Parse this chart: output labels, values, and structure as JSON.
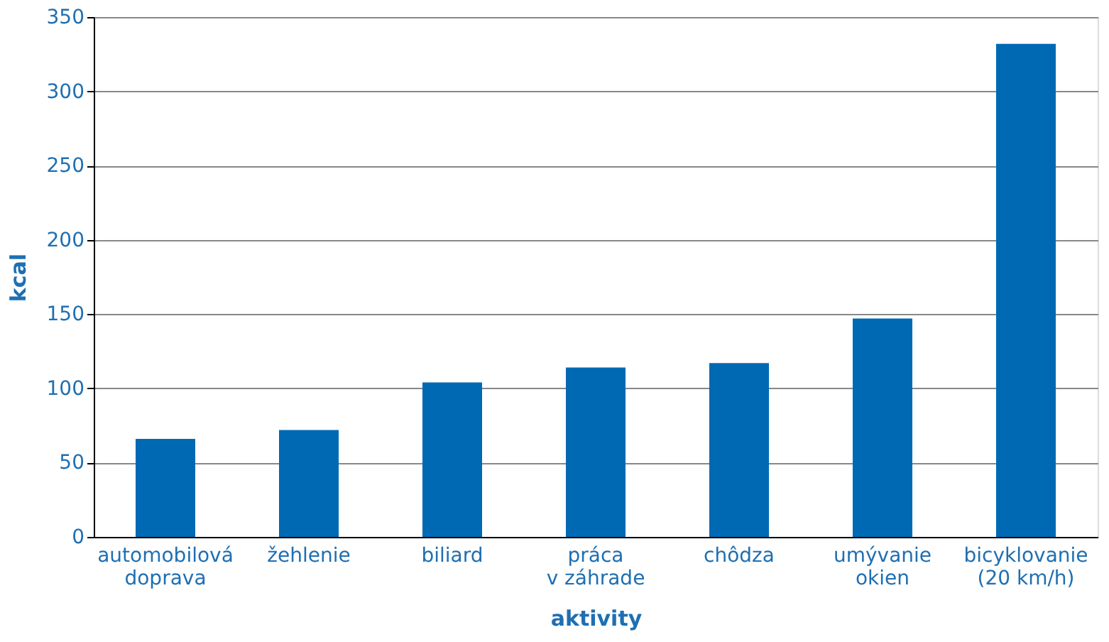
{
  "chart_data": {
    "type": "bar",
    "categories": [
      "automobilová\ndoprava",
      "žehlenie",
      "biliard",
      "práca\nv záhrade",
      "chôdza",
      "umývanie\nokien",
      "bicyklovanie\n(20 km/h)"
    ],
    "values": [
      66,
      72,
      104,
      114,
      117,
      147,
      332
    ],
    "color": "#0069b4",
    "xlabel": "aktivity",
    "ylabel": "kcal",
    "ylim": [
      0,
      350
    ],
    "yticks": [
      0,
      50,
      100,
      150,
      200,
      250,
      300,
      350
    ],
    "grid": "y"
  }
}
